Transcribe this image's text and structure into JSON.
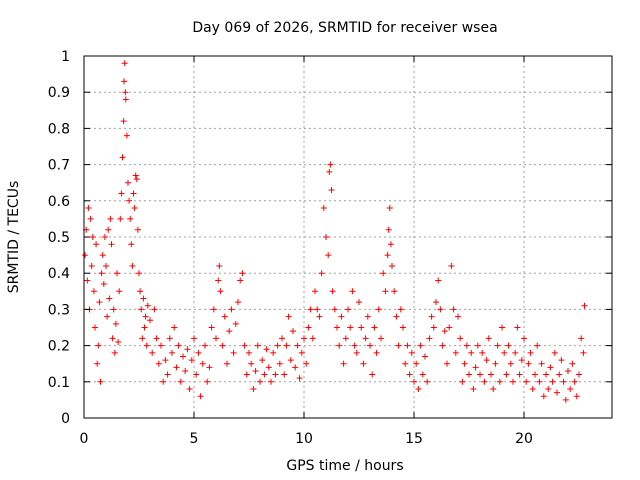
{
  "chart_data": {
    "type": "scatter",
    "title": "Day 069 of 2026, SRMTID for receiver wsea",
    "xlabel": "GPS time / hours",
    "ylabel": "SRMTID / TECUs",
    "xlim": [
      0,
      24
    ],
    "ylim": [
      0,
      1
    ],
    "x_ticks": [
      0,
      5,
      10,
      15,
      20
    ],
    "x_tick_labels": [
      "0",
      "5",
      "10",
      "15",
      "20"
    ],
    "y_ticks": [
      0,
      0.1,
      0.2,
      0.3,
      0.4,
      0.5,
      0.6,
      0.7,
      0.8,
      0.9,
      1
    ],
    "y_tick_labels": [
      "0",
      "0.1",
      "0.2",
      "0.3",
      "0.4",
      "0.5",
      "0.6",
      "0.7",
      "0.8",
      "0.9",
      "1"
    ],
    "grid": true,
    "marker": "+",
    "color": "#ff0000",
    "series": [
      {
        "name": "SRMTID",
        "points": [
          [
            0.05,
            0.45
          ],
          [
            0.1,
            0.52
          ],
          [
            0.15,
            0.38
          ],
          [
            0.2,
            0.58
          ],
          [
            0.25,
            0.3
          ],
          [
            0.3,
            0.55
          ],
          [
            0.35,
            0.42
          ],
          [
            0.4,
            0.5
          ],
          [
            0.45,
            0.35
          ],
          [
            0.5,
            0.25
          ],
          [
            0.55,
            0.48
          ],
          [
            0.6,
            0.15
          ],
          [
            0.65,
            0.2
          ],
          [
            0.7,
            0.32
          ],
          [
            0.75,
            0.1
          ],
          [
            0.8,
            0.4
          ],
          [
            0.85,
            0.45
          ],
          [
            0.9,
            0.37
          ],
          [
            0.95,
            0.5
          ],
          [
            1.0,
            0.42
          ],
          [
            1.05,
            0.28
          ],
          [
            1.1,
            0.52
          ],
          [
            1.15,
            0.33
          ],
          [
            1.2,
            0.55
          ],
          [
            1.25,
            0.48
          ],
          [
            1.3,
            0.22
          ],
          [
            1.35,
            0.3
          ],
          [
            1.4,
            0.18
          ],
          [
            1.45,
            0.26
          ],
          [
            1.5,
            0.4
          ],
          [
            1.55,
            0.21
          ],
          [
            1.6,
            0.35
          ],
          [
            1.65,
            0.55
          ],
          [
            1.7,
            0.62
          ],
          [
            1.75,
            0.72
          ],
          [
            1.8,
            0.82
          ],
          [
            1.82,
            0.93
          ],
          [
            1.85,
            0.98
          ],
          [
            1.88,
            0.9
          ],
          [
            1.9,
            0.88
          ],
          [
            1.95,
            0.78
          ],
          [
            2.0,
            0.65
          ],
          [
            2.05,
            0.6
          ],
          [
            2.1,
            0.55
          ],
          [
            2.15,
            0.48
          ],
          [
            2.2,
            0.42
          ],
          [
            2.25,
            0.62
          ],
          [
            2.3,
            0.58
          ],
          [
            2.35,
            0.67
          ],
          [
            2.4,
            0.66
          ],
          [
            2.45,
            0.52
          ],
          [
            2.5,
            0.4
          ],
          [
            2.55,
            0.35
          ],
          [
            2.6,
            0.3
          ],
          [
            2.65,
            0.22
          ],
          [
            2.7,
            0.33
          ],
          [
            2.75,
            0.25
          ],
          [
            2.8,
            0.28
          ],
          [
            2.85,
            0.2
          ],
          [
            2.9,
            0.31
          ],
          [
            3.0,
            0.27
          ],
          [
            3.1,
            0.18
          ],
          [
            3.2,
            0.3
          ],
          [
            3.3,
            0.22
          ],
          [
            3.4,
            0.15
          ],
          [
            3.5,
            0.2
          ],
          [
            3.6,
            0.1
          ],
          [
            3.7,
            0.16
          ],
          [
            3.8,
            0.12
          ],
          [
            3.9,
            0.22
          ],
          [
            4.0,
            0.18
          ],
          [
            4.1,
            0.25
          ],
          [
            4.2,
            0.14
          ],
          [
            4.3,
            0.2
          ],
          [
            4.4,
            0.1
          ],
          [
            4.5,
            0.17
          ],
          [
            4.6,
            0.13
          ],
          [
            4.7,
            0.19
          ],
          [
            4.8,
            0.08
          ],
          [
            4.9,
            0.16
          ],
          [
            5.0,
            0.22
          ],
          [
            5.1,
            0.12
          ],
          [
            5.2,
            0.18
          ],
          [
            5.3,
            0.06
          ],
          [
            5.4,
            0.15
          ],
          [
            5.5,
            0.2
          ],
          [
            5.6,
            0.1
          ],
          [
            5.7,
            0.14
          ],
          [
            5.8,
            0.25
          ],
          [
            5.9,
            0.3
          ],
          [
            6.0,
            0.22
          ],
          [
            6.1,
            0.38
          ],
          [
            6.15,
            0.42
          ],
          [
            6.2,
            0.35
          ],
          [
            6.3,
            0.2
          ],
          [
            6.4,
            0.28
          ],
          [
            6.5,
            0.15
          ],
          [
            6.6,
            0.24
          ],
          [
            6.7,
            0.3
          ],
          [
            6.8,
            0.18
          ],
          [
            6.9,
            0.26
          ],
          [
            7.0,
            0.32
          ],
          [
            7.1,
            0.38
          ],
          [
            7.2,
            0.4
          ],
          [
            7.3,
            0.2
          ],
          [
            7.4,
            0.12
          ],
          [
            7.5,
            0.18
          ],
          [
            7.6,
            0.15
          ],
          [
            7.7,
            0.08
          ],
          [
            7.8,
            0.13
          ],
          [
            7.9,
            0.2
          ],
          [
            8.0,
            0.1
          ],
          [
            8.1,
            0.16
          ],
          [
            8.2,
            0.12
          ],
          [
            8.3,
            0.19
          ],
          [
            8.4,
            0.14
          ],
          [
            8.5,
            0.1
          ],
          [
            8.6,
            0.18
          ],
          [
            8.7,
            0.12
          ],
          [
            8.8,
            0.2
          ],
          [
            8.9,
            0.15
          ],
          [
            9.0,
            0.22
          ],
          [
            9.1,
            0.12
          ],
          [
            9.2,
            0.2
          ],
          [
            9.3,
            0.28
          ],
          [
            9.4,
            0.16
          ],
          [
            9.5,
            0.24
          ],
          [
            9.6,
            0.14
          ],
          [
            9.7,
            0.2
          ],
          [
            9.8,
            0.11
          ],
          [
            9.9,
            0.18
          ],
          [
            10.0,
            0.22
          ],
          [
            10.1,
            0.15
          ],
          [
            10.2,
            0.25
          ],
          [
            10.3,
            0.3
          ],
          [
            10.4,
            0.22
          ],
          [
            10.5,
            0.35
          ],
          [
            10.6,
            0.3
          ],
          [
            10.7,
            0.28
          ],
          [
            10.8,
            0.4
          ],
          [
            10.9,
            0.58
          ],
          [
            11.0,
            0.5
          ],
          [
            11.1,
            0.45
          ],
          [
            11.15,
            0.68
          ],
          [
            11.2,
            0.7
          ],
          [
            11.25,
            0.63
          ],
          [
            11.3,
            0.35
          ],
          [
            11.4,
            0.3
          ],
          [
            11.5,
            0.25
          ],
          [
            11.6,
            0.2
          ],
          [
            11.7,
            0.28
          ],
          [
            11.8,
            0.15
          ],
          [
            11.9,
            0.22
          ],
          [
            12.0,
            0.3
          ],
          [
            12.1,
            0.25
          ],
          [
            12.2,
            0.35
          ],
          [
            12.3,
            0.2
          ],
          [
            12.4,
            0.18
          ],
          [
            12.5,
            0.32
          ],
          [
            12.6,
            0.25
          ],
          [
            12.7,
            0.15
          ],
          [
            12.8,
            0.22
          ],
          [
            12.9,
            0.28
          ],
          [
            13.0,
            0.2
          ],
          [
            13.1,
            0.12
          ],
          [
            13.2,
            0.25
          ],
          [
            13.3,
            0.18
          ],
          [
            13.4,
            0.3
          ],
          [
            13.5,
            0.22
          ],
          [
            13.6,
            0.4
          ],
          [
            13.7,
            0.35
          ],
          [
            13.8,
            0.45
          ],
          [
            13.85,
            0.52
          ],
          [
            13.9,
            0.58
          ],
          [
            13.95,
            0.48
          ],
          [
            14.0,
            0.42
          ],
          [
            14.1,
            0.35
          ],
          [
            14.2,
            0.28
          ],
          [
            14.3,
            0.2
          ],
          [
            14.4,
            0.3
          ],
          [
            14.5,
            0.25
          ],
          [
            14.6,
            0.15
          ],
          [
            14.7,
            0.2
          ],
          [
            14.8,
            0.12
          ],
          [
            14.9,
            0.18
          ],
          [
            15.0,
            0.1
          ],
          [
            15.1,
            0.15
          ],
          [
            15.2,
            0.08
          ],
          [
            15.3,
            0.2
          ],
          [
            15.4,
            0.12
          ],
          [
            15.5,
            0.17
          ],
          [
            15.6,
            0.1
          ],
          [
            15.7,
            0.22
          ],
          [
            15.8,
            0.28
          ],
          [
            15.9,
            0.25
          ],
          [
            16.0,
            0.32
          ],
          [
            16.1,
            0.38
          ],
          [
            16.2,
            0.3
          ],
          [
            16.3,
            0.2
          ],
          [
            16.4,
            0.24
          ],
          [
            16.5,
            0.15
          ],
          [
            16.6,
            0.25
          ],
          [
            16.7,
            0.42
          ],
          [
            16.8,
            0.3
          ],
          [
            16.9,
            0.18
          ],
          [
            17.0,
            0.28
          ],
          [
            17.1,
            0.22
          ],
          [
            17.2,
            0.1
          ],
          [
            17.3,
            0.15
          ],
          [
            17.4,
            0.2
          ],
          [
            17.5,
            0.12
          ],
          [
            17.6,
            0.18
          ],
          [
            17.7,
            0.08
          ],
          [
            17.8,
            0.14
          ],
          [
            17.9,
            0.2
          ],
          [
            18.0,
            0.12
          ],
          [
            18.1,
            0.18
          ],
          [
            18.2,
            0.1
          ],
          [
            18.3,
            0.16
          ],
          [
            18.4,
            0.22
          ],
          [
            18.5,
            0.12
          ],
          [
            18.6,
            0.08
          ],
          [
            18.7,
            0.15
          ],
          [
            18.8,
            0.2
          ],
          [
            18.9,
            0.1
          ],
          [
            19.0,
            0.25
          ],
          [
            19.1,
            0.18
          ],
          [
            19.2,
            0.12
          ],
          [
            19.3,
            0.2
          ],
          [
            19.4,
            0.15
          ],
          [
            19.5,
            0.1
          ],
          [
            19.6,
            0.18
          ],
          [
            19.7,
            0.25
          ],
          [
            19.8,
            0.12
          ],
          [
            19.9,
            0.16
          ],
          [
            20.0,
            0.22
          ],
          [
            20.1,
            0.1
          ],
          [
            20.2,
            0.15
          ],
          [
            20.3,
            0.18
          ],
          [
            20.4,
            0.08
          ],
          [
            20.5,
            0.12
          ],
          [
            20.6,
            0.2
          ],
          [
            20.7,
            0.1
          ],
          [
            20.8,
            0.15
          ],
          [
            20.9,
            0.06
          ],
          [
            21.0,
            0.12
          ],
          [
            21.1,
            0.08
          ],
          [
            21.2,
            0.14
          ],
          [
            21.3,
            0.1
          ],
          [
            21.4,
            0.18
          ],
          [
            21.5,
            0.07
          ],
          [
            21.6,
            0.12
          ],
          [
            21.7,
            0.16
          ],
          [
            21.8,
            0.1
          ],
          [
            21.9,
            0.05
          ],
          [
            22.0,
            0.13
          ],
          [
            22.1,
            0.08
          ],
          [
            22.2,
            0.15
          ],
          [
            22.3,
            0.1
          ],
          [
            22.4,
            0.06
          ],
          [
            22.5,
            0.12
          ],
          [
            22.6,
            0.22
          ],
          [
            22.7,
            0.18
          ],
          [
            22.75,
            0.31
          ]
        ]
      }
    ]
  }
}
